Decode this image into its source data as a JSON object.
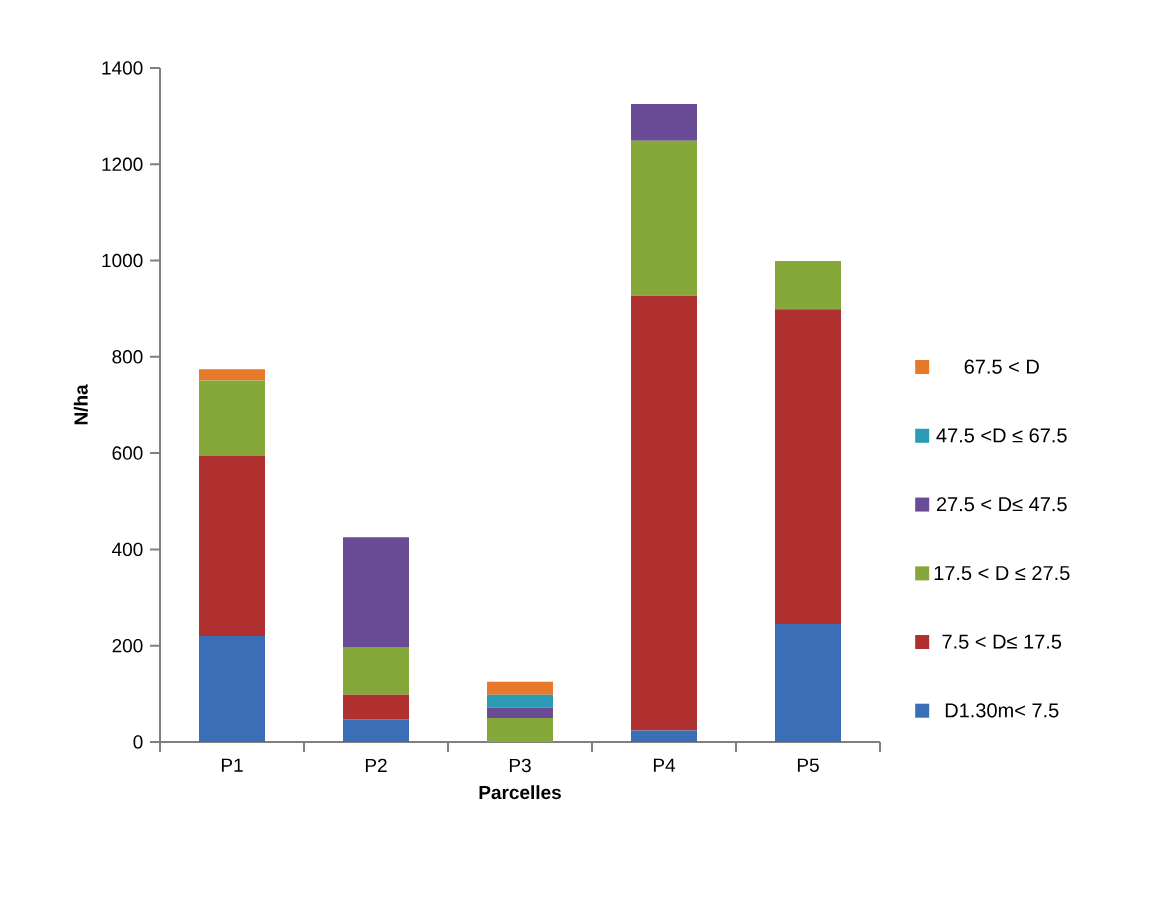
{
  "chart_data": {
    "type": "bar",
    "stacked": true,
    "xlabel": "Parcelles",
    "ylabel": "N/ha",
    "categories": [
      "P1",
      "P2",
      "P3",
      "P4",
      "P5"
    ],
    "ylim": [
      0,
      1400
    ],
    "yticks": [
      0,
      200,
      400,
      600,
      800,
      1000,
      1200,
      1400
    ],
    "legend": "right",
    "grid": false,
    "series": [
      {
        "name": "D1.30m< 7.5",
        "color": "#3a6fb5",
        "values": [
          220,
          47,
          0,
          24,
          245
        ]
      },
      {
        "name": "7.5  < D≤ 17.5",
        "color": "#b03030",
        "values": [
          374,
          51,
          0,
          903,
          654
        ]
      },
      {
        "name": "17.5 < D ≤ 27.5",
        "color": "#86a83a",
        "values": [
          157,
          99,
          50,
          322,
          100
        ]
      },
      {
        "name": "27.5 < D≤ 47.5",
        "color": "#6a4b96",
        "values": [
          0,
          228,
          21,
          76,
          0
        ]
      },
      {
        "name": "47.5 <D ≤ 67.5",
        "color": "#2b9ab2",
        "values": [
          0,
          0,
          27,
          0,
          0
        ]
      },
      {
        "name": "67.5 < D",
        "color": "#e8782a",
        "values": [
          23,
          0,
          27,
          0,
          0
        ]
      }
    ]
  }
}
